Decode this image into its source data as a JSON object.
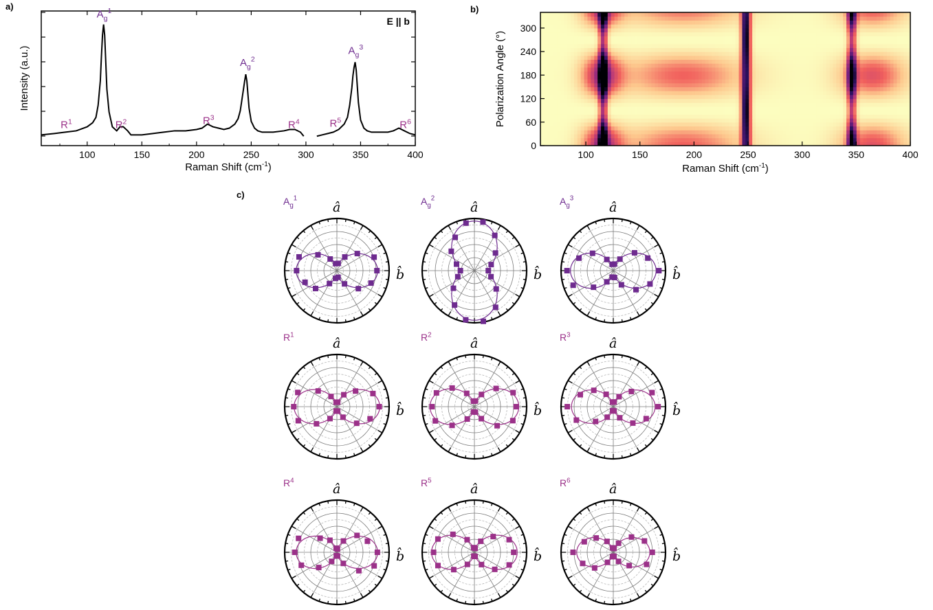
{
  "panels": {
    "a": "a)",
    "b": "b)",
    "c": "c)"
  },
  "colors": {
    "accent_purple": "#6e2b8f",
    "accent_magenta": "#9b3189",
    "spectrum_line": "#000000"
  },
  "chart_data": [
    {
      "type": "line",
      "panel": "a",
      "annotation": "E || b",
      "xlabel": "Raman Shift (cm",
      "xlabel_sup": "-1",
      "xlabel_end": ")",
      "ylabel": "Intensity (a.u.)",
      "xlim": [
        58,
        400
      ],
      "ylim": [
        0,
        1.0
      ],
      "x_ticks": [
        100,
        150,
        200,
        250,
        300,
        350,
        400
      ],
      "segments": [
        {
          "x": [
            58,
            70,
            80,
            90,
            100,
            105,
            108,
            110,
            112,
            113,
            114,
            115,
            116,
            117,
            118,
            120,
            123,
            127,
            130,
            133,
            137,
            140,
            150,
            160,
            170,
            180,
            190,
            200,
            205,
            210,
            215,
            220,
            225,
            230,
            235,
            238,
            240,
            242,
            244,
            245,
            246,
            247,
            248,
            250,
            253,
            256,
            260,
            270,
            280,
            285,
            290,
            295,
            298
          ],
          "y": [
            0.08,
            0.09,
            0.1,
            0.11,
            0.14,
            0.17,
            0.21,
            0.3,
            0.48,
            0.66,
            0.82,
            0.9,
            0.82,
            0.62,
            0.42,
            0.25,
            0.14,
            0.11,
            0.14,
            0.14,
            0.11,
            0.08,
            0.08,
            0.09,
            0.1,
            0.11,
            0.11,
            0.12,
            0.13,
            0.16,
            0.14,
            0.13,
            0.12,
            0.13,
            0.16,
            0.2,
            0.26,
            0.37,
            0.48,
            0.53,
            0.48,
            0.38,
            0.28,
            0.18,
            0.13,
            0.11,
            0.1,
            0.1,
            0.11,
            0.12,
            0.12,
            0.1,
            0.07
          ]
        },
        {
          "x": [
            310,
            315,
            320,
            325,
            330,
            335,
            338,
            340,
            342,
            343,
            344,
            345,
            346,
            347,
            348,
            350,
            353,
            356,
            360,
            365,
            370,
            375,
            380,
            385,
            390,
            395,
            400
          ],
          "y": [
            0.07,
            0.08,
            0.09,
            0.1,
            0.12,
            0.16,
            0.21,
            0.3,
            0.43,
            0.52,
            0.58,
            0.62,
            0.56,
            0.44,
            0.32,
            0.19,
            0.13,
            0.11,
            0.1,
            0.1,
            0.1,
            0.1,
            0.11,
            0.13,
            0.11,
            0.09,
            0.08
          ]
        }
      ],
      "peak_labels": [
        {
          "base": "A",
          "sub": "g",
          "sup": "1",
          "x": 115,
          "y": 0.92
        },
        {
          "base": "A",
          "sub": "g",
          "sup": "2",
          "x": 246,
          "y": 0.56
        },
        {
          "base": "A",
          "sub": "g",
          "sup": "3",
          "x": 345,
          "y": 0.65
        },
        {
          "base": "R",
          "sub": "",
          "sup": "1",
          "x": 82,
          "y": 0.13
        },
        {
          "base": "R",
          "sub": "",
          "sup": "2",
          "x": 132,
          "y": 0.13
        },
        {
          "base": "R",
          "sub": "",
          "sup": "3",
          "x": 212,
          "y": 0.16
        },
        {
          "base": "R",
          "sub": "",
          "sup": "4",
          "x": 290,
          "y": 0.13
        },
        {
          "base": "R",
          "sub": "",
          "sup": "5",
          "x": 328,
          "y": 0.14
        },
        {
          "base": "R",
          "sub": "",
          "sup": "6",
          "x": 392,
          "y": 0.13
        }
      ]
    },
    {
      "type": "heatmap",
      "panel": "b",
      "xlabel": "Raman Shift (cm",
      "xlabel_sup": "-1",
      "xlabel_end": ")",
      "ylabel": "Polarization Angle (°)",
      "xlim": [
        58,
        400
      ],
      "ylim": [
        0,
        340
      ],
      "x_ticks": [
        100,
        150,
        200,
        250,
        300,
        350,
        400
      ],
      "y_ticks": [
        0,
        60,
        120,
        180,
        240,
        300
      ],
      "colormap": [
        "#fcfdbf",
        "#fdc78d",
        "#f1605d",
        "#b5367a",
        "#721f81",
        "#2c115f",
        "#000004"
      ],
      "modes": [
        {
          "center": 116,
          "width": 4,
          "amp": 0.55,
          "base": 0.55,
          "profile": "cos2"
        },
        {
          "center": 115,
          "width": 18,
          "amp": 0.55,
          "base": 0.0,
          "profile": "cos2"
        },
        {
          "center": 248,
          "width": 4,
          "amp": 0.25,
          "base": 0.85,
          "profile": "sin2"
        },
        {
          "center": 190,
          "width": 55,
          "amp": 0.35,
          "base": 0.0,
          "profile": "cos2"
        },
        {
          "center": 346,
          "width": 4,
          "amp": 0.5,
          "base": 0.5,
          "profile": "cos2"
        },
        {
          "center": 365,
          "width": 30,
          "amp": 0.4,
          "base": 0.0,
          "profile": "cos2"
        }
      ]
    },
    {
      "type": "scatter",
      "panel": "c",
      "subtype": "polar",
      "axis_top": "â",
      "axis_right": "b̂",
      "plots": [
        {
          "label_base": "A",
          "label_sub": "g",
          "label_sup": "1",
          "color": "#6e2b8f",
          "shape": "bowtie-b",
          "a": 0.78,
          "c": 0.12,
          "scatter": 0.1
        },
        {
          "label_base": "A",
          "label_sub": "g",
          "label_sup": "2",
          "color": "#6e2b8f",
          "shape": "peanut-a",
          "a": 0.95,
          "c": 0.28,
          "scatter": 0.06
        },
        {
          "label_base": "A",
          "label_sub": "g",
          "label_sup": "3",
          "color": "#6e2b8f",
          "shape": "bowtie-b",
          "a": 0.82,
          "c": 0.1,
          "scatter": 0.12
        },
        {
          "label_base": "R",
          "label_sub": "",
          "label_sup": "1",
          "color": "#9b3189",
          "shape": "bowtie-b",
          "a": 0.82,
          "c": 0.06,
          "scatter": 0.1
        },
        {
          "label_base": "R",
          "label_sub": "",
          "label_sup": "2",
          "color": "#9b3189",
          "shape": "bowtie-b",
          "a": 0.85,
          "c": 0.08,
          "scatter": 0.08
        },
        {
          "label_base": "R",
          "label_sub": "",
          "label_sup": "3",
          "color": "#9b3189",
          "shape": "bowtie-b",
          "a": 0.8,
          "c": 0.06,
          "scatter": 0.12
        },
        {
          "label_base": "R",
          "label_sub": "",
          "label_sup": "4",
          "color": "#9b3189",
          "shape": "bowtie-b",
          "a": 0.78,
          "c": 0.05,
          "scatter": 0.15
        },
        {
          "label_base": "R",
          "label_sub": "",
          "label_sup": "5",
          "color": "#9b3189",
          "shape": "bowtie-b",
          "a": 0.82,
          "c": 0.06,
          "scatter": 0.12
        },
        {
          "label_base": "R",
          "label_sub": "",
          "label_sup": "6",
          "color": "#9b3189",
          "shape": "bowtie-b",
          "a": 0.7,
          "c": 0.06,
          "scatter": 0.1
        }
      ]
    }
  ]
}
